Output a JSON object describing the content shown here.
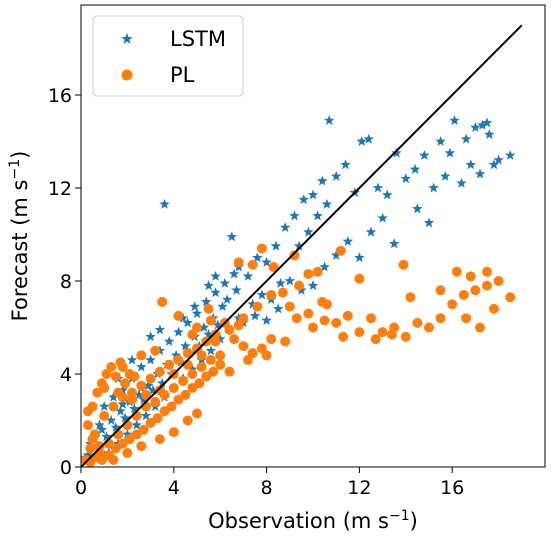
{
  "chart_data": {
    "type": "scatter",
    "xlabel": "Observation (m s",
    "xlabel_sup": "−1",
    "xlabel_close": ")",
    "ylabel": "Forecast (m s",
    "ylabel_sup": "−1",
    "ylabel_close": ")",
    "xlim": [
      0,
      20
    ],
    "ylim": [
      0,
      20
    ],
    "x_ticks": [
      0,
      4,
      8,
      12,
      16
    ],
    "y_ticks": [
      0,
      4,
      8,
      12,
      16
    ],
    "x_tick_labels": [
      "0",
      "4",
      "8",
      "12",
      "16"
    ],
    "y_tick_labels": [
      "0",
      "4",
      "8",
      "12",
      "16"
    ],
    "grid": false,
    "legend_position": "top-left",
    "reference_line": {
      "x": [
        0,
        19
      ],
      "y": [
        0,
        19
      ],
      "color": "#000000"
    },
    "series": [
      {
        "name": "LSTM",
        "marker": "star",
        "color": "#1f77b4",
        "points": [
          [
            0.3,
            0.5
          ],
          [
            0.5,
            1.2
          ],
          [
            0.7,
            0.9
          ],
          [
            0.9,
            1.6
          ],
          [
            1.1,
            1.3
          ],
          [
            1.3,
            2.0
          ],
          [
            1.5,
            1.7
          ],
          [
            1.7,
            2.4
          ],
          [
            1.9,
            2.1
          ],
          [
            2.1,
            2.8
          ],
          [
            2.3,
            2.5
          ],
          [
            2.5,
            3.1
          ],
          [
            2.7,
            2.9
          ],
          [
            2.9,
            3.5
          ],
          [
            3.1,
            3.3
          ],
          [
            3.3,
            4.0
          ],
          [
            3.5,
            3.6
          ],
          [
            3.7,
            4.4
          ],
          [
            3.9,
            4.0
          ],
          [
            4.1,
            4.8
          ],
          [
            4.3,
            4.5
          ],
          [
            4.5,
            5.2
          ],
          [
            4.7,
            4.9
          ],
          [
            4.9,
            5.6
          ],
          [
            5.1,
            5.2
          ],
          [
            5.3,
            6.0
          ],
          [
            5.5,
            5.7
          ],
          [
            5.7,
            6.4
          ],
          [
            5.9,
            6.1
          ],
          [
            6.1,
            6.9
          ],
          [
            1.0,
            2.6
          ],
          [
            1.4,
            3.0
          ],
          [
            1.8,
            3.3
          ],
          [
            2.2,
            3.8
          ],
          [
            2.6,
            4.3
          ],
          [
            3.0,
            4.6
          ],
          [
            3.4,
            5.0
          ],
          [
            3.8,
            5.4
          ],
          [
            4.2,
            5.8
          ],
          [
            4.6,
            6.2
          ],
          [
            5.0,
            6.6
          ],
          [
            5.4,
            7.1
          ],
          [
            5.8,
            7.5
          ],
          [
            6.2,
            7.9
          ],
          [
            6.6,
            8.3
          ],
          [
            1.2,
            0.6
          ],
          [
            1.6,
            1.0
          ],
          [
            2.0,
            1.4
          ],
          [
            2.4,
            1.8
          ],
          [
            2.8,
            2.2
          ],
          [
            3.2,
            2.6
          ],
          [
            3.6,
            3.0
          ],
          [
            4.0,
            3.4
          ],
          [
            4.4,
            3.8
          ],
          [
            4.8,
            4.2
          ],
          [
            5.2,
            4.6
          ],
          [
            5.6,
            5.0
          ],
          [
            6.0,
            5.5
          ],
          [
            6.4,
            5.9
          ],
          [
            6.8,
            6.4
          ],
          [
            3.6,
            11.3
          ],
          [
            6.5,
            9.9
          ],
          [
            6.8,
            8.6
          ],
          [
            7.2,
            8.2
          ],
          [
            7.6,
            9.0
          ],
          [
            8.0,
            8.8
          ],
          [
            8.4,
            9.5
          ],
          [
            8.8,
            10.3
          ],
          [
            9.2,
            10.8
          ],
          [
            9.6,
            11.5
          ],
          [
            10.0,
            11.7
          ],
          [
            10.4,
            12.3
          ],
          [
            10.7,
            14.9
          ],
          [
            11.0,
            12.5
          ],
          [
            11.4,
            13.0
          ],
          [
            11.8,
            11.8
          ],
          [
            12.1,
            14.0
          ],
          [
            12.4,
            14.1
          ],
          [
            12.8,
            12.0
          ],
          [
            13.2,
            11.7
          ],
          [
            13.6,
            13.5
          ],
          [
            14.0,
            12.4
          ],
          [
            14.4,
            12.8
          ],
          [
            14.8,
            13.4
          ],
          [
            15.2,
            12.0
          ],
          [
            15.5,
            14.0
          ],
          [
            15.9,
            13.5
          ],
          [
            16.1,
            14.9
          ],
          [
            16.4,
            12.2
          ],
          [
            16.8,
            13.0
          ],
          [
            17.0,
            14.6
          ],
          [
            17.2,
            12.6
          ],
          [
            17.5,
            14.8
          ],
          [
            17.6,
            14.3
          ],
          [
            17.8,
            13.0
          ],
          [
            18.0,
            13.2
          ],
          [
            18.5,
            13.4
          ],
          [
            17.3,
            14.7
          ],
          [
            16.6,
            14.1
          ],
          [
            15.7,
            12.5
          ],
          [
            9.0,
            8.0
          ],
          [
            9.5,
            7.6
          ],
          [
            10.0,
            7.8
          ],
          [
            10.5,
            8.6
          ],
          [
            11.0,
            9.1
          ],
          [
            11.5,
            9.7
          ],
          [
            12.0,
            9.0
          ],
          [
            12.5,
            10.1
          ],
          [
            13.0,
            10.7
          ],
          [
            13.5,
            9.6
          ],
          [
            14.5,
            11.1
          ],
          [
            15.0,
            10.5
          ],
          [
            7.4,
            7.0
          ],
          [
            7.8,
            7.4
          ],
          [
            8.2,
            7.2
          ],
          [
            8.6,
            7.9
          ],
          [
            9.4,
            9.5
          ],
          [
            9.8,
            10.1
          ],
          [
            10.2,
            10.8
          ],
          [
            10.6,
            11.3
          ],
          [
            7.0,
            6.2
          ],
          [
            7.5,
            6.5
          ],
          [
            8.0,
            6.3
          ],
          [
            8.5,
            6.8
          ],
          [
            6.3,
            7.2
          ],
          [
            6.7,
            7.6
          ],
          [
            5.5,
            7.8
          ],
          [
            5.8,
            8.2
          ],
          [
            4.9,
            6.9
          ],
          [
            4.4,
            6.4
          ],
          [
            2.2,
            4.6
          ],
          [
            1.6,
            3.8
          ],
          [
            3.0,
            5.6
          ],
          [
            3.4,
            5.9
          ],
          [
            0.8,
            1.8
          ],
          [
            0.4,
            1.0
          ],
          [
            0.2,
            0.4
          ],
          [
            1.0,
            0.5
          ],
          [
            1.8,
            2.7
          ],
          [
            2.6,
            3.4
          ]
        ]
      },
      {
        "name": "PL",
        "marker": "circle",
        "color": "#ff7f0e",
        "points": [
          [
            0.2,
            0.3
          ],
          [
            0.4,
            0.8
          ],
          [
            0.6,
            1.4
          ],
          [
            0.8,
            0.6
          ],
          [
            1.0,
            2.2
          ],
          [
            1.2,
            1.0
          ],
          [
            1.4,
            2.6
          ],
          [
            1.6,
            1.4
          ],
          [
            1.8,
            3.0
          ],
          [
            2.0,
            1.8
          ],
          [
            2.2,
            3.2
          ],
          [
            2.4,
            2.2
          ],
          [
            2.6,
            3.5
          ],
          [
            2.8,
            2.6
          ],
          [
            3.0,
            3.8
          ],
          [
            3.2,
            2.8
          ],
          [
            3.4,
            4.1
          ],
          [
            3.6,
            3.1
          ],
          [
            3.8,
            4.4
          ],
          [
            4.0,
            3.4
          ],
          [
            4.2,
            4.6
          ],
          [
            4.4,
            3.7
          ],
          [
            4.6,
            4.9
          ],
          [
            4.8,
            4.0
          ],
          [
            5.0,
            5.1
          ],
          [
            5.2,
            4.3
          ],
          [
            5.4,
            5.4
          ],
          [
            5.6,
            4.6
          ],
          [
            5.8,
            5.7
          ],
          [
            6.0,
            4.8
          ],
          [
            0.3,
            1.8
          ],
          [
            0.5,
            2.6
          ],
          [
            0.7,
            3.2
          ],
          [
            0.9,
            3.6
          ],
          [
            1.1,
            4.0
          ],
          [
            1.3,
            4.3
          ],
          [
            1.5,
            3.9
          ],
          [
            1.7,
            4.5
          ],
          [
            1.9,
            3.6
          ],
          [
            2.1,
            4.0
          ],
          [
            0.4,
            0.2
          ],
          [
            0.6,
            0.4
          ],
          [
            0.9,
            0.3
          ],
          [
            1.2,
            0.5
          ],
          [
            1.5,
            0.8
          ],
          [
            1.8,
            1.0
          ],
          [
            2.1,
            1.2
          ],
          [
            2.4,
            1.4
          ],
          [
            2.7,
            1.6
          ],
          [
            3.0,
            1.9
          ],
          [
            3.3,
            2.1
          ],
          [
            3.6,
            2.4
          ],
          [
            3.9,
            2.6
          ],
          [
            4.2,
            2.9
          ],
          [
            4.5,
            3.1
          ],
          [
            4.8,
            3.4
          ],
          [
            5.1,
            3.6
          ],
          [
            5.4,
            3.9
          ],
          [
            5.7,
            4.1
          ],
          [
            6.0,
            4.4
          ],
          [
            3.5,
            7.1
          ],
          [
            4.2,
            6.5
          ],
          [
            5.0,
            6.0
          ],
          [
            5.5,
            6.8
          ],
          [
            6.2,
            6.2
          ],
          [
            6.6,
            5.5
          ],
          [
            7.0,
            5.2
          ],
          [
            7.4,
            4.9
          ],
          [
            7.8,
            5.1
          ],
          [
            8.2,
            5.5
          ],
          [
            6.8,
            8.8
          ],
          [
            7.4,
            8.7
          ],
          [
            7.8,
            9.4
          ],
          [
            8.3,
            8.6
          ],
          [
            8.7,
            7.5
          ],
          [
            9.0,
            6.9
          ],
          [
            9.4,
            7.8
          ],
          [
            9.8,
            6.6
          ],
          [
            10.2,
            8.4
          ],
          [
            10.6,
            7.0
          ],
          [
            9.3,
            6.4
          ],
          [
            10.0,
            6.0
          ],
          [
            10.5,
            6.3
          ],
          [
            11.0,
            6.2
          ],
          [
            11.5,
            6.5
          ],
          [
            12.0,
            5.8
          ],
          [
            12.5,
            6.4
          ],
          [
            13.0,
            5.8
          ],
          [
            13.5,
            6.0
          ],
          [
            14.0,
            5.6
          ],
          [
            14.5,
            6.2
          ],
          [
            15.0,
            6.0
          ],
          [
            15.5,
            6.4
          ],
          [
            16.0,
            7.0
          ],
          [
            16.5,
            7.4
          ],
          [
            17.0,
            7.6
          ],
          [
            17.5,
            7.8
          ],
          [
            18.0,
            8.0
          ],
          [
            18.5,
            7.3
          ],
          [
            17.8,
            6.8
          ],
          [
            17.2,
            6.0
          ],
          [
            16.6,
            6.4
          ],
          [
            16.2,
            8.4
          ],
          [
            16.8,
            8.2
          ],
          [
            17.5,
            8.4
          ],
          [
            13.9,
            8.7
          ],
          [
            14.2,
            7.3
          ],
          [
            15.5,
            7.6
          ],
          [
            11.2,
            9.3
          ],
          [
            12.0,
            8.1
          ],
          [
            9.2,
            9.1
          ],
          [
            9.8,
            8.3
          ],
          [
            10.4,
            7.1
          ],
          [
            11.3,
            5.6
          ],
          [
            12.7,
            5.5
          ],
          [
            13.4,
            5.7
          ],
          [
            8.8,
            5.4
          ],
          [
            8.0,
            4.8
          ],
          [
            7.2,
            4.6
          ],
          [
            6.4,
            4.1
          ],
          [
            5.0,
            2.3
          ],
          [
            4.6,
            2.0
          ],
          [
            4.0,
            1.5
          ],
          [
            3.4,
            1.2
          ],
          [
            2.6,
            0.9
          ],
          [
            2.0,
            0.6
          ],
          [
            1.4,
            0.3
          ],
          [
            0.8,
            0.9
          ],
          [
            0.5,
            1.2
          ],
          [
            0.3,
            2.4
          ],
          [
            1.0,
            3.4
          ],
          [
            1.6,
            3.2
          ],
          [
            2.2,
            2.9
          ],
          [
            2.8,
            3.1
          ],
          [
            3.4,
            3.3
          ],
          [
            4.0,
            4.0
          ],
          [
            4.6,
            4.4
          ],
          [
            5.2,
            4.8
          ],
          [
            5.8,
            5.4
          ],
          [
            6.4,
            5.9
          ],
          [
            7.0,
            6.4
          ],
          [
            7.6,
            6.9
          ],
          [
            8.2,
            7.4
          ],
          [
            6.8,
            6.1
          ],
          [
            5.6,
            6.3
          ],
          [
            4.8,
            5.7
          ],
          [
            3.2,
            5.0
          ],
          [
            2.6,
            4.8
          ],
          [
            1.8,
            4.3
          ],
          [
            2.3,
            3.9
          ]
        ]
      }
    ]
  }
}
